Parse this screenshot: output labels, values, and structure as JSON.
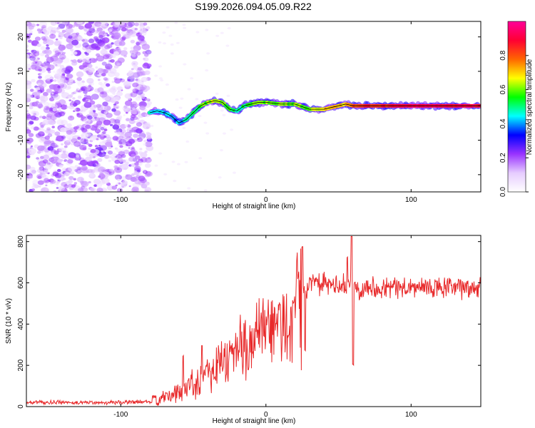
{
  "title": "S199.2026.094.05.09.R22",
  "chart_data": [
    {
      "type": "heatmap",
      "name": "spectrogram",
      "xlabel": "Height of straight line (km)",
      "ylabel": "Frequency (Hz)",
      "xlim": [
        -165,
        148
      ],
      "ylim": [
        -25,
        24.5
      ],
      "xticks": [
        -100,
        0,
        100
      ],
      "yticks": [
        -20,
        -10,
        0,
        10,
        20
      ],
      "noise_region_x": [
        -165,
        -80
      ],
      "colorbar": {
        "label": "Normalized spectral amplitude",
        "range": [
          0,
          1
        ],
        "ticks": [
          0.0,
          0.2,
          0.4,
          0.6,
          0.8
        ],
        "colors": [
          "#ffffff",
          "#e6ccff",
          "#9933ff",
          "#0000ff",
          "#00ffff",
          "#00ff00",
          "#ffff00",
          "#ff6600",
          "#ff0033",
          "#ff0099"
        ]
      },
      "ridge": {
        "x": [
          -80,
          -75,
          -70,
          -65,
          -60,
          -55,
          -50,
          -45,
          -40,
          -35,
          -30,
          -25,
          -20,
          -15,
          -10,
          -5,
          0,
          10,
          20,
          30,
          40,
          50,
          55,
          60,
          80,
          100,
          148
        ],
        "freq": [
          -2,
          -1.5,
          -2,
          -3,
          -5,
          -4,
          -2,
          0,
          1,
          1.5,
          1,
          -1,
          -1.5,
          0,
          0.5,
          1,
          1,
          0.5,
          0.5,
          -1,
          -1,
          0,
          0.5,
          0,
          0,
          0,
          0
        ],
        "amplitude": [
          0.45,
          0.45,
          0.4,
          0.4,
          0.4,
          0.45,
          0.5,
          0.55,
          0.6,
          0.65,
          0.6,
          0.55,
          0.5,
          0.5,
          0.55,
          0.6,
          0.6,
          0.6,
          0.6,
          0.6,
          0.7,
          0.7,
          0.7,
          0.8,
          0.85,
          0.9,
          0.9
        ]
      }
    },
    {
      "type": "line",
      "name": "snr",
      "xlabel": "Height of straight line (km)",
      "ylabel": "SNR (10 * v/v)",
      "xlim": [
        -165,
        148
      ],
      "ylim": [
        0,
        830
      ],
      "xticks": [
        -100,
        0,
        100
      ],
      "yticks": [
        0,
        200,
        400,
        600,
        800
      ],
      "color": "#e8292a",
      "trend": {
        "x": [
          -165,
          -100,
          -80,
          -70,
          -60,
          -50,
          -40,
          -30,
          -20,
          -10,
          0,
          10,
          20,
          25,
          30,
          40,
          60,
          80,
          100,
          148
        ],
        "y": [
          20,
          20,
          25,
          40,
          70,
          120,
          170,
          220,
          270,
          320,
          350,
          390,
          450,
          560,
          600,
          590,
          580,
          580,
          575,
          575
        ]
      },
      "spikes": [
        {
          "x": -57,
          "y": 250
        },
        {
          "x": -44,
          "y": 300
        },
        {
          "x": 25,
          "y": 780
        },
        {
          "x": 27,
          "y": 280
        },
        {
          "x": 56,
          "y": 730
        },
        {
          "x": 59,
          "y": 830
        },
        {
          "x": 60,
          "y": 210
        }
      ]
    }
  ]
}
